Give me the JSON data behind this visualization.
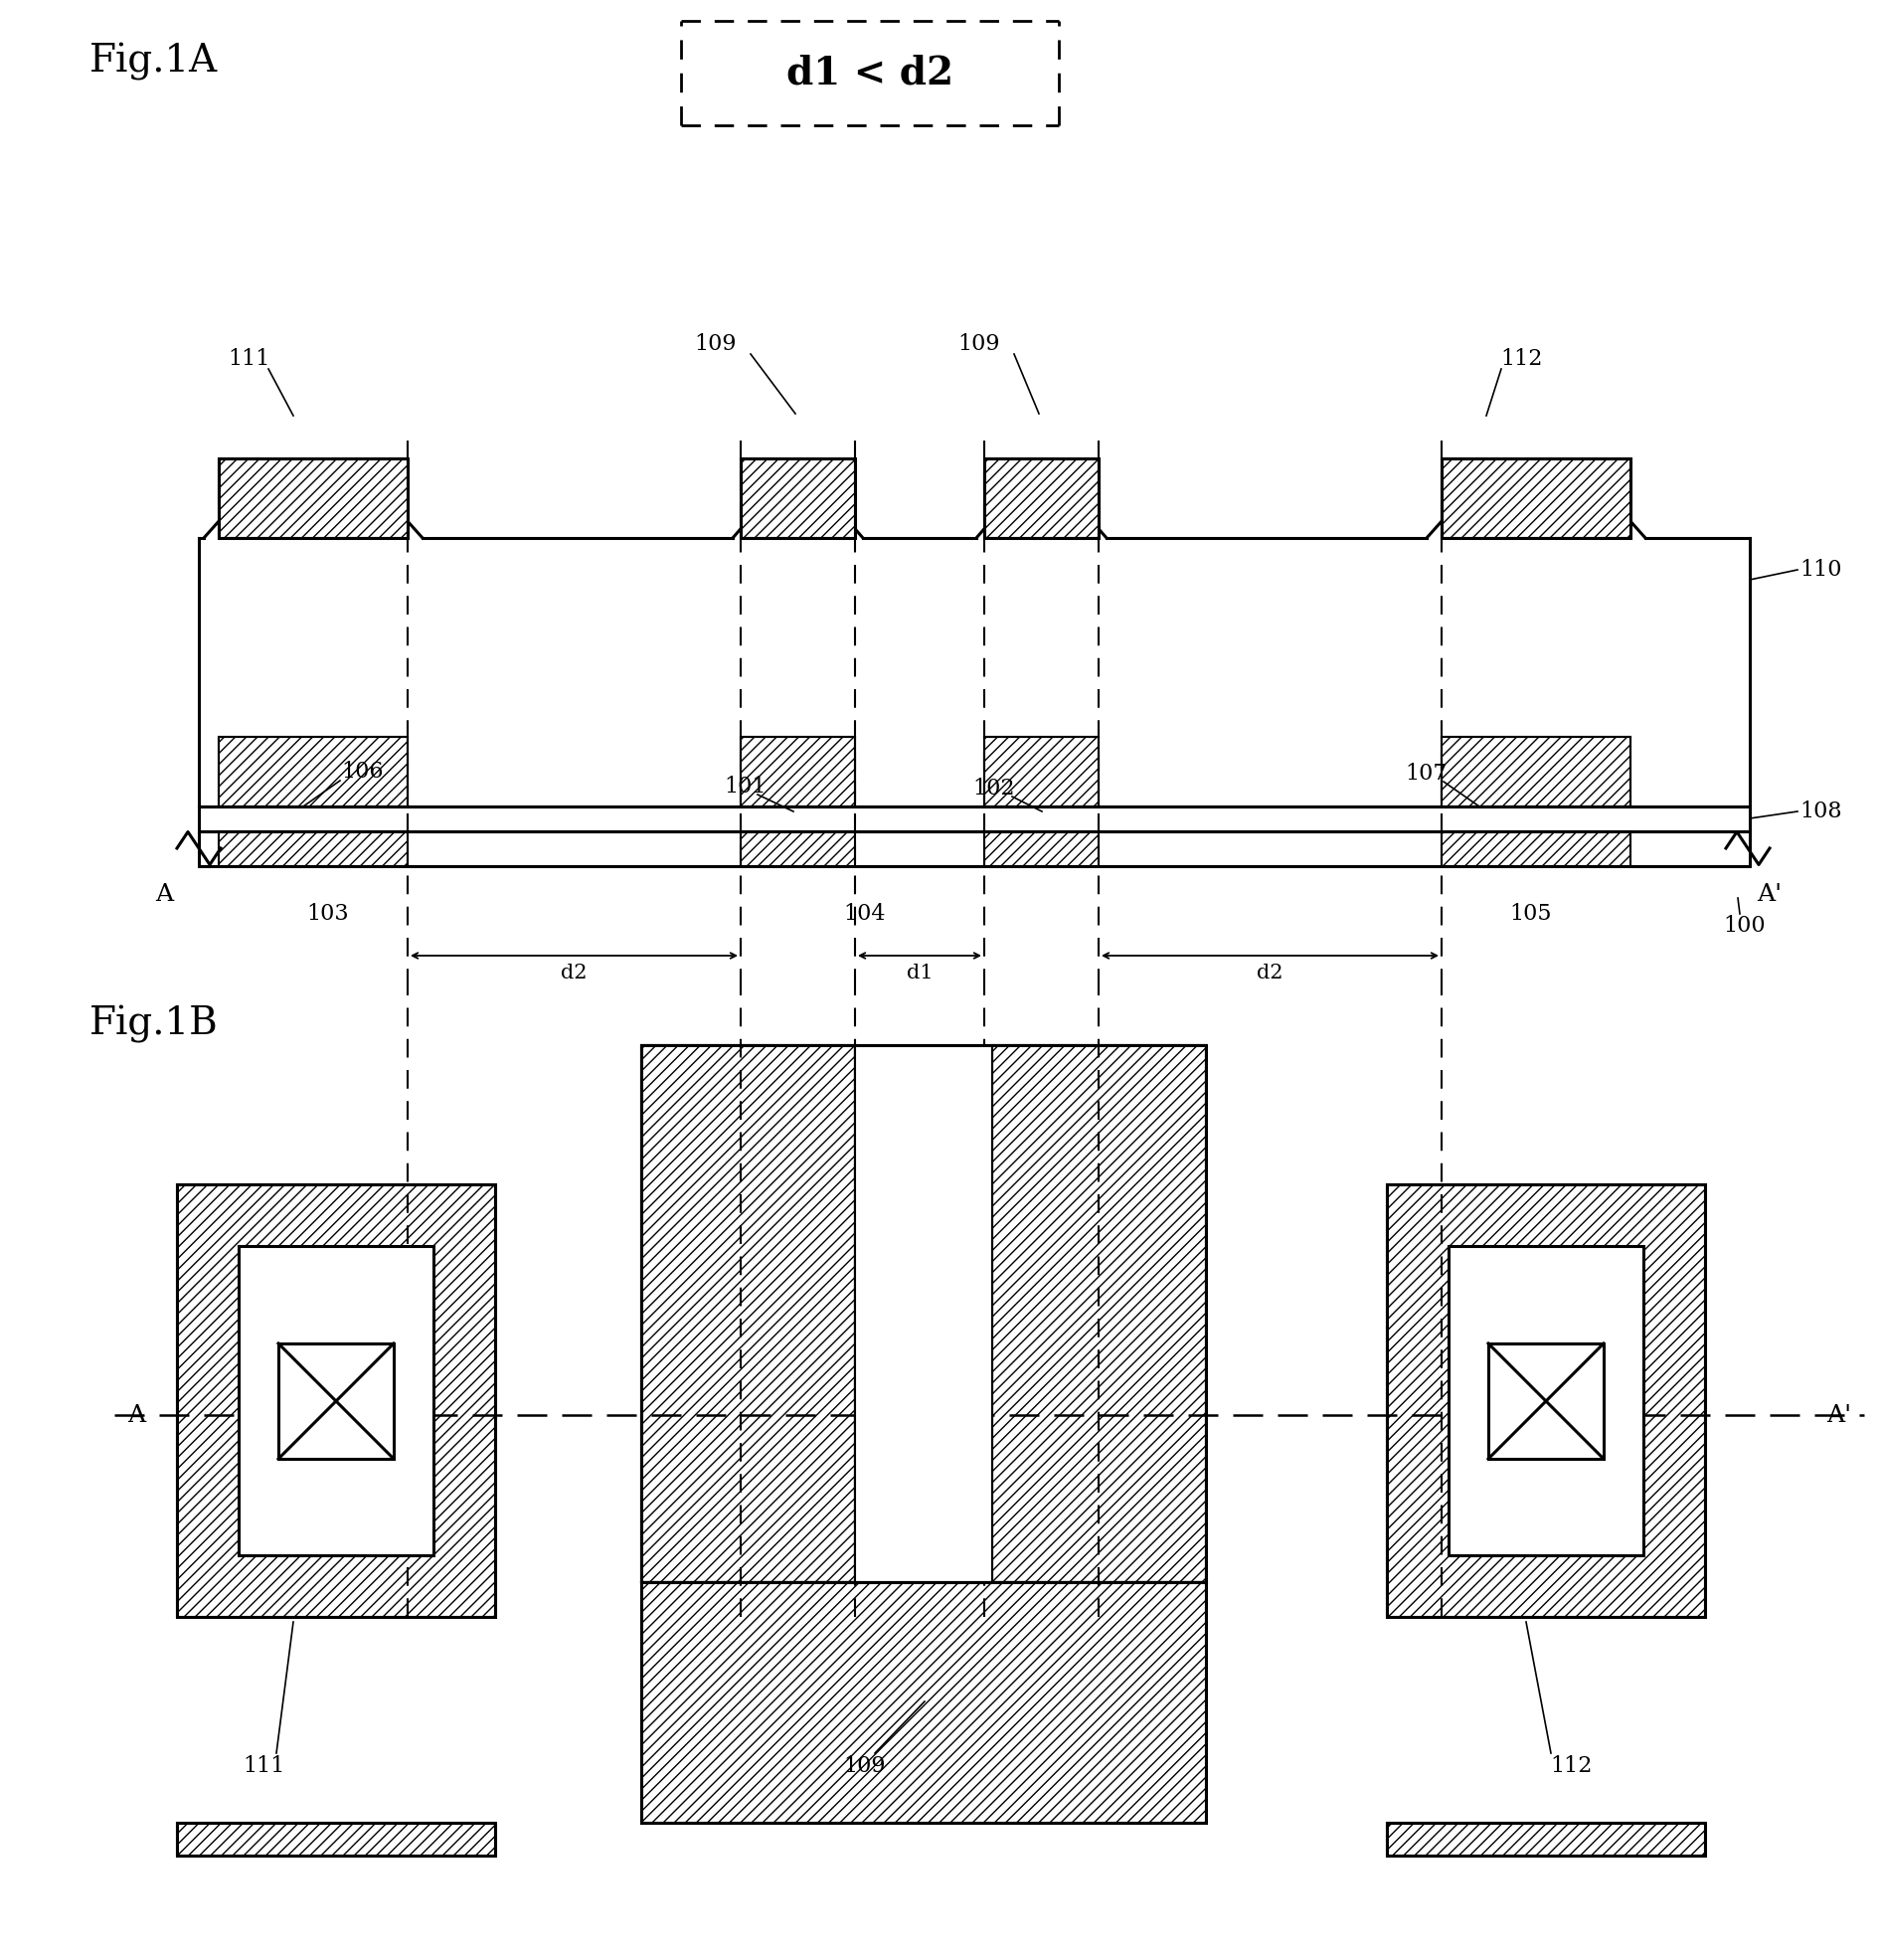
{
  "fig_label_A": "Fig.1A",
  "fig_label_B": "Fig.1B",
  "formula_text": "d1 < d2",
  "bg_color": "#ffffff",
  "line_color": "#000000",
  "ref_111_A": "111",
  "ref_109_A1": "109",
  "ref_109_A2": "109",
  "ref_112_A": "112",
  "ref_110": "110",
  "ref_108": "108",
  "ref_106": "106",
  "ref_101": "101",
  "ref_102": "102",
  "ref_107": "107",
  "ref_103": "103",
  "ref_104": "104",
  "ref_105": "105",
  "ref_100": "100",
  "ref_A1": "A",
  "ref_Ap1": "A'",
  "ref_A2": "A",
  "ref_Ap2": "A'",
  "ref_111_B": "111",
  "ref_109_B": "109",
  "ref_112_B": "112",
  "dim_d1": "d1",
  "dim_d2l": "d2",
  "dim_d2r": "d2"
}
